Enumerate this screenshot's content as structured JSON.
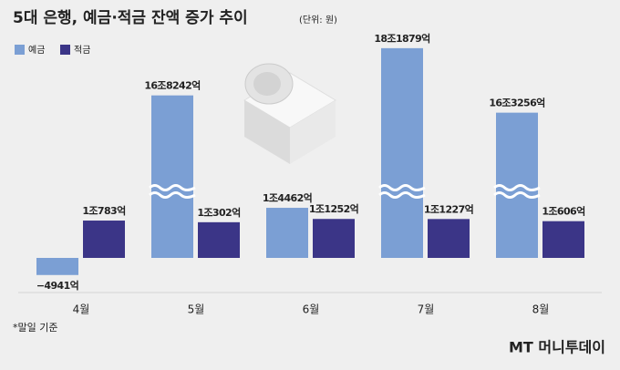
{
  "chart_data": {
    "type": "bar",
    "title": "5대 은행, 예금·적금 잔액 증가 추이",
    "subtitle": "(단위: 원)",
    "categories": [
      "4월",
      "5월",
      "6월",
      "7월",
      "8월"
    ],
    "series": [
      {
        "name": "예금",
        "color": "#7b9fd4",
        "values": [
          -4941,
          168242,
          14462,
          181879,
          163256
        ],
        "value_labels": [
          "−4941억",
          "16조8242억",
          "1조4462억",
          "18조1879억",
          "16조3256억"
        ]
      },
      {
        "name": "적금",
        "color": "#3b3587",
        "values": [
          10783,
          10302,
          11252,
          11227,
          10606
        ],
        "value_labels": [
          "1조783억",
          "1조302억",
          "1조1252억",
          "1조1227억",
          "1조606억"
        ]
      }
    ],
    "legend": "top-left",
    "note": "*말일 기준",
    "source": "MT 머니투데이"
  }
}
